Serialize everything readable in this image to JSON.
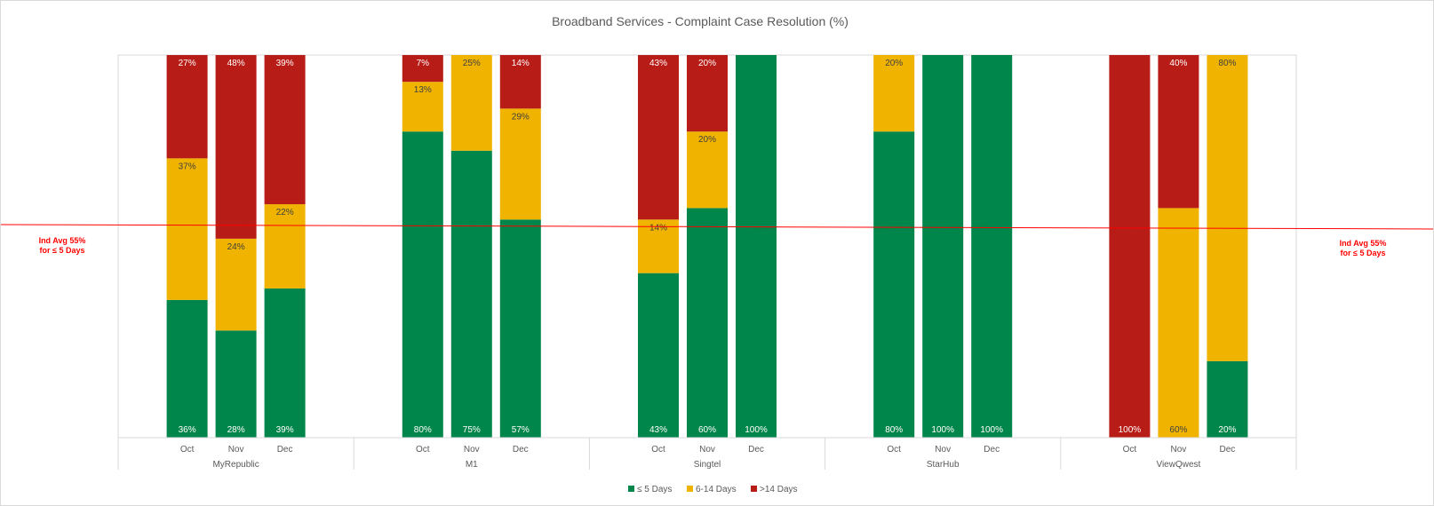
{
  "chart_data": {
    "type": "bar",
    "stacked": true,
    "title": "Broadband Services  - Complaint Case Resolution (%)",
    "ylim": [
      0,
      100
    ],
    "groups": [
      {
        "name": "MyRepublic",
        "bars": [
          {
            "month": "Oct",
            "segments": [
              {
                "series": "≤ 5 Days",
                "value": 36,
                "label": "36%"
              },
              {
                "series": "6-14 Days",
                "value": 37,
                "label": "37%"
              },
              {
                "series": ">14 Days",
                "value": 27,
                "label": "27%"
              }
            ]
          },
          {
            "month": "Nov",
            "segments": [
              {
                "series": "≤ 5 Days",
                "value": 28,
                "label": "28%"
              },
              {
                "series": "6-14 Days",
                "value": 24,
                "label": "24%"
              },
              {
                "series": ">14 Days",
                "value": 48,
                "label": "48%"
              }
            ]
          },
          {
            "month": "Dec",
            "segments": [
              {
                "series": "≤ 5 Days",
                "value": 39,
                "label": "39%"
              },
              {
                "series": "6-14 Days",
                "value": 22,
                "label": "22%"
              },
              {
                "series": ">14 Days",
                "value": 39,
                "label": "39%"
              }
            ]
          }
        ]
      },
      {
        "name": "M1",
        "bars": [
          {
            "month": "Oct",
            "segments": [
              {
                "series": "≤ 5 Days",
                "value": 80,
                "label": "80%"
              },
              {
                "series": "6-14 Days",
                "value": 13,
                "label": "13%"
              },
              {
                "series": ">14 Days",
                "value": 7,
                "label": "7%"
              }
            ]
          },
          {
            "month": "Nov",
            "segments": [
              {
                "series": "≤ 5 Days",
                "value": 75,
                "label": "75%"
              },
              {
                "series": "6-14 Days",
                "value": 25,
                "label": "25%"
              }
            ]
          },
          {
            "month": "Dec",
            "segments": [
              {
                "series": "≤ 5 Days",
                "value": 57,
                "label": "57%"
              },
              {
                "series": "6-14 Days",
                "value": 29,
                "label": "29%"
              },
              {
                "series": ">14 Days",
                "value": 14,
                "label": "14%"
              }
            ]
          }
        ]
      },
      {
        "name": "Singtel",
        "bars": [
          {
            "month": "Oct",
            "segments": [
              {
                "series": "≤ 5 Days",
                "value": 43,
                "label": "43%"
              },
              {
                "series": "6-14 Days",
                "value": 14,
                "label": "14%"
              },
              {
                "series": ">14 Days",
                "value": 43,
                "label": "43%"
              }
            ]
          },
          {
            "month": "Nov",
            "segments": [
              {
                "series": "≤ 5 Days",
                "value": 60,
                "label": "60%"
              },
              {
                "series": "6-14 Days",
                "value": 20,
                "label": "20%"
              },
              {
                "series": ">14 Days",
                "value": 20,
                "label": "20%"
              }
            ]
          },
          {
            "month": "Dec",
            "segments": [
              {
                "series": "≤ 5 Days",
                "value": 100,
                "label": "100%"
              }
            ]
          }
        ]
      },
      {
        "name": "StarHub",
        "bars": [
          {
            "month": "Oct",
            "segments": [
              {
                "series": "≤ 5 Days",
                "value": 80,
                "label": "80%"
              },
              {
                "series": "6-14 Days",
                "value": 20,
                "label": "20%"
              }
            ]
          },
          {
            "month": "Nov",
            "segments": [
              {
                "series": "≤ 5 Days",
                "value": 100,
                "label": "100%"
              }
            ]
          },
          {
            "month": "Dec",
            "segments": [
              {
                "series": "≤ 5 Days",
                "value": 100,
                "label": "100%"
              }
            ]
          }
        ]
      },
      {
        "name": "ViewQwest",
        "bars": [
          {
            "month": "Oct",
            "segments": [
              {
                "series": ">14 Days",
                "value": 100,
                "label": "100%"
              }
            ]
          },
          {
            "month": "Nov",
            "segments": [
              {
                "series": "6-14 Days",
                "value": 60,
                "label": "60%"
              },
              {
                "series": ">14 Days",
                "value": 40,
                "label": "40%"
              }
            ]
          },
          {
            "month": "Dec",
            "segments": [
              {
                "series": "≤ 5 Days",
                "value": 20,
                "label": "20%"
              },
              {
                "series": "6-14 Days",
                "value": 80,
                "label": "80%"
              }
            ]
          }
        ]
      }
    ],
    "series": [
      {
        "name": "≤ 5 Days",
        "color": "#00854a",
        "label_color": "#ffffff"
      },
      {
        "name": "6-14 Days",
        "color": "#f0b400",
        "label_color": "#404040"
      },
      {
        "name": ">14 Days",
        "color": "#b81c16",
        "label_color": "#ffffff"
      }
    ],
    "reference_line": {
      "value": 55,
      "color": "#ff0000",
      "label_line1": "Ind Avg 55%",
      "label_line2": "for ≤ 5 Days"
    },
    "legend_position": "bottom"
  }
}
